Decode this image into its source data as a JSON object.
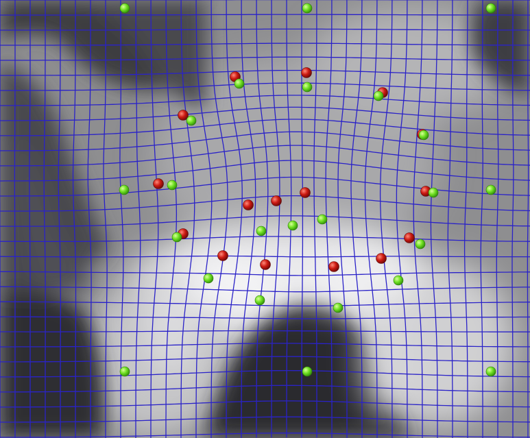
{
  "image": {
    "description": "",
    "grid_color": "#2a22c8",
    "red_marker_color": "#c81010",
    "green_marker_color": "#66e020"
  },
  "legend": {}
}
